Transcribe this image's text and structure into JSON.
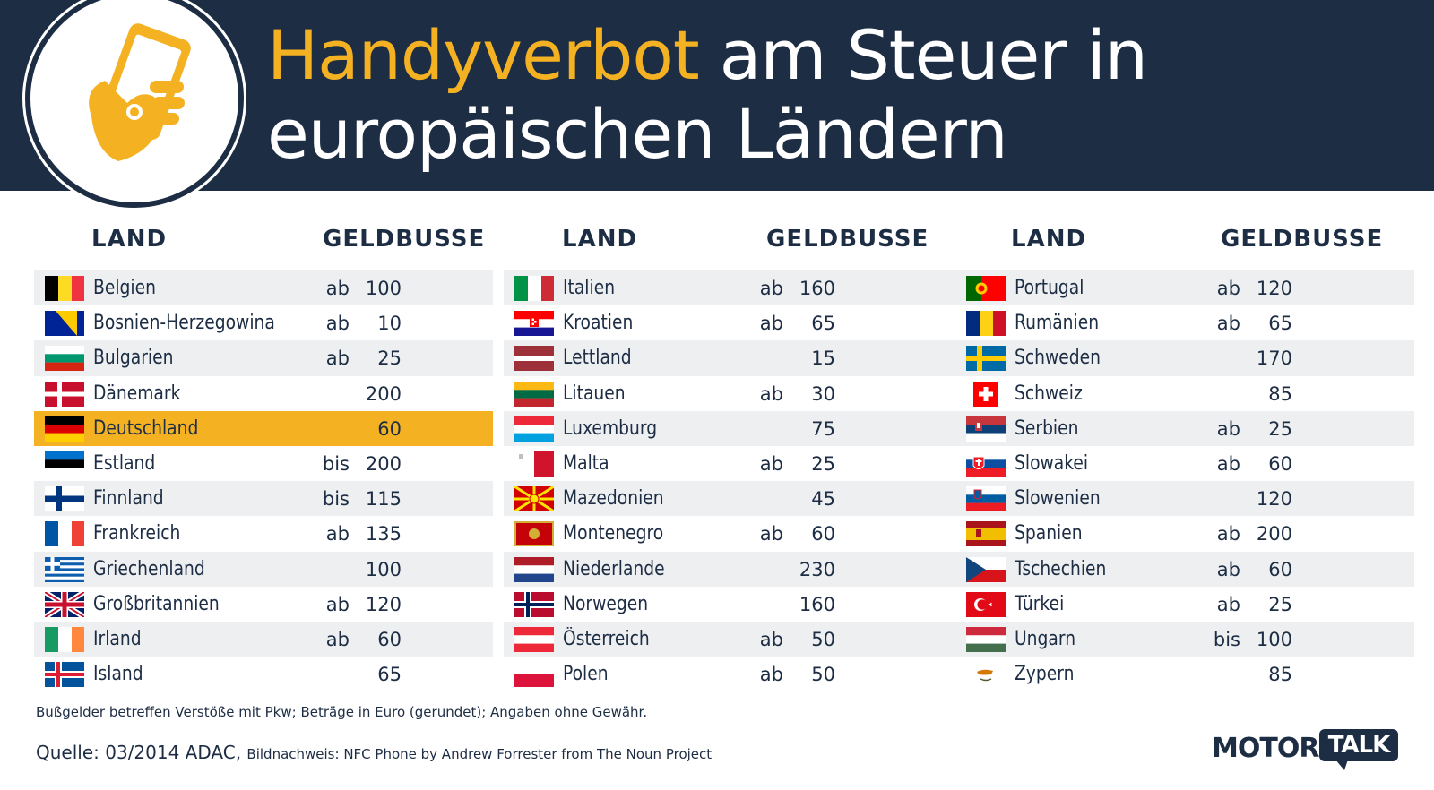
{
  "header": {
    "title_accent": "Handyverbot",
    "title_line1_rest": " am Steuer in",
    "title_line2": "europäischen Ländern"
  },
  "columns": [
    {
      "land_header": "LAND",
      "fine_header": "GELDBUSSE",
      "rows": [
        {
          "country": "Belgien",
          "prefix": "ab",
          "amount": "100",
          "flag": "belgium-flag"
        },
        {
          "country": "Bosnien-Herzegowina",
          "prefix": "ab",
          "amount": "10",
          "flag": "bosnia-flag"
        },
        {
          "country": "Bulgarien",
          "prefix": "ab",
          "amount": "25",
          "flag": "bulgaria-flag"
        },
        {
          "country": "Dänemark",
          "prefix": "",
          "amount": "200",
          "flag": "denmark-flag"
        },
        {
          "country": "Deutschland",
          "prefix": "",
          "amount": "60",
          "flag": "germany-flag",
          "highlight": true
        },
        {
          "country": "Estland",
          "prefix": "bis",
          "amount": "200",
          "flag": "estonia-flag"
        },
        {
          "country": "Finnland",
          "prefix": "bis",
          "amount": "115",
          "flag": "finland-flag"
        },
        {
          "country": "Frankreich",
          "prefix": "ab",
          "amount": "135",
          "flag": "france-flag"
        },
        {
          "country": "Griechenland",
          "prefix": "",
          "amount": "100",
          "flag": "greece-flag"
        },
        {
          "country": "Großbritannien",
          "prefix": "ab",
          "amount": "120",
          "flag": "uk-flag"
        },
        {
          "country": "Irland",
          "prefix": "ab",
          "amount": "60",
          "flag": "ireland-flag"
        },
        {
          "country": "Island",
          "prefix": "",
          "amount": "65",
          "flag": "iceland-flag"
        }
      ]
    },
    {
      "land_header": "LAND",
      "fine_header": "GELDBUSSE",
      "rows": [
        {
          "country": "Italien",
          "prefix": "ab",
          "amount": "160",
          "flag": "italy-flag"
        },
        {
          "country": "Kroatien",
          "prefix": "ab",
          "amount": "65",
          "flag": "croatia-flag"
        },
        {
          "country": "Lettland",
          "prefix": "",
          "amount": "15",
          "flag": "latvia-flag"
        },
        {
          "country": "Litauen",
          "prefix": "ab",
          "amount": "30",
          "flag": "lithuania-flag"
        },
        {
          "country": "Luxemburg",
          "prefix": "",
          "amount": "75",
          "flag": "luxembourg-flag"
        },
        {
          "country": "Malta",
          "prefix": "ab",
          "amount": "25",
          "flag": "malta-flag"
        },
        {
          "country": "Mazedonien",
          "prefix": "",
          "amount": "45",
          "flag": "macedonia-flag"
        },
        {
          "country": "Montenegro",
          "prefix": "ab",
          "amount": "60",
          "flag": "montenegro-flag"
        },
        {
          "country": "Niederlande",
          "prefix": "",
          "amount": "230",
          "flag": "netherlands-flag"
        },
        {
          "country": "Norwegen",
          "prefix": "",
          "amount": "160",
          "flag": "norway-flag"
        },
        {
          "country": "Österreich",
          "prefix": "ab",
          "amount": "50",
          "flag": "austria-flag"
        },
        {
          "country": "Polen",
          "prefix": "ab",
          "amount": "50",
          "flag": "poland-flag"
        }
      ]
    },
    {
      "land_header": "LAND",
      "fine_header": "GELDBUSSE",
      "rows": [
        {
          "country": "Portugal",
          "prefix": "ab",
          "amount": "120",
          "flag": "portugal-flag"
        },
        {
          "country": "Rumänien",
          "prefix": "ab",
          "amount": "65",
          "flag": "romania-flag"
        },
        {
          "country": "Schweden",
          "prefix": "",
          "amount": "170",
          "flag": "sweden-flag"
        },
        {
          "country": "Schweiz",
          "prefix": "",
          "amount": "85",
          "flag": "switzerland-flag"
        },
        {
          "country": "Serbien",
          "prefix": "ab",
          "amount": "25",
          "flag": "serbia-flag"
        },
        {
          "country": "Slowakei",
          "prefix": "ab",
          "amount": "60",
          "flag": "slovakia-flag"
        },
        {
          "country": "Slowenien",
          "prefix": "",
          "amount": "120",
          "flag": "slovenia-flag"
        },
        {
          "country": "Spanien",
          "prefix": "ab",
          "amount": "200",
          "flag": "spain-flag"
        },
        {
          "country": "Tschechien",
          "prefix": "ab",
          "amount": "60",
          "flag": "czech-flag"
        },
        {
          "country": "Türkei",
          "prefix": "ab",
          "amount": "25",
          "flag": "turkey-flag"
        },
        {
          "country": "Ungarn",
          "prefix": "bis",
          "amount": "100",
          "flag": "hungary-flag"
        },
        {
          "country": "Zypern",
          "prefix": "",
          "amount": "85",
          "flag": "cyprus-flag"
        }
      ]
    }
  ],
  "footer": {
    "note": "Bußgelder betreffen Verstöße mit Pkw; Beträge in Euro (gerundet); Angaben ohne Gewähr.",
    "source": "Quelle: 03/2014 ADAC,",
    "credit": "Bildnachweis: NFC Phone by Andrew Forrester from The Noun Project",
    "brand_motor": "MOTOR",
    "brand_talk": "TALK"
  },
  "colors": {
    "navy": "#1d2d44",
    "accent": "#f4b223",
    "row_alt": "#eeeff1"
  }
}
